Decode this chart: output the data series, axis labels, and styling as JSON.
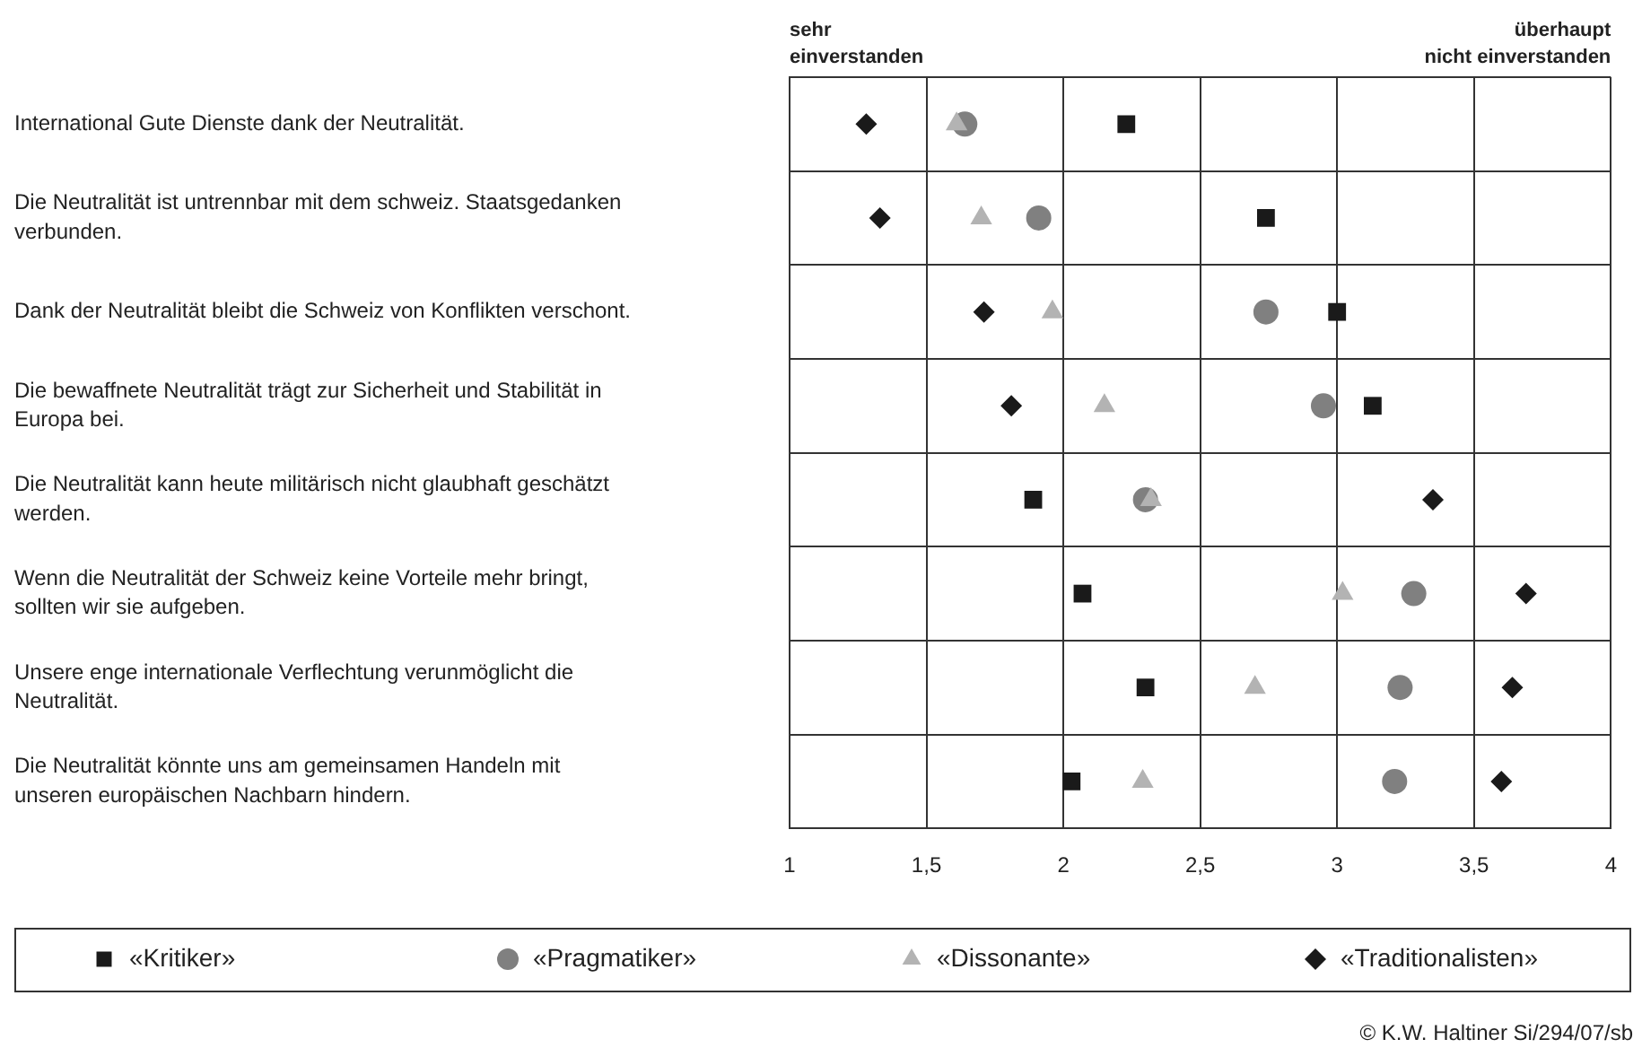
{
  "chart_data": {
    "type": "scatter",
    "categories": [
      "International Gute Dienste dank der Neutralität.",
      "Die Neutralität ist untrennbar mit dem schweiz. Staatsgedanken verbunden.",
      "Dank der Neutralität bleibt die Schweiz von Konflikten verschont.",
      "Die bewaffnete Neutralität trägt zur Sicherheit und Stabilität in Europa bei.",
      "Die Neutralität kann heute militärisch nicht glaubhaft geschätzt werden.",
      "Wenn die Neutralität der Schweiz keine Vorteile mehr bringt, sollten wir sie aufgeben.",
      "Unsere enge internationale Verflechtung verunmöglicht die Neutralität.",
      "Die Neutralität könnte uns am gemeinsamen Handeln mit unseren europäischen Nachbarn hindern."
    ],
    "orientation": "horizontal",
    "xlim": [
      1,
      4
    ],
    "xticks": [
      1,
      {
        "value": 1.5,
        "label": "1,5"
      },
      2,
      {
        "value": 2.5,
        "label": "2,5"
      },
      3,
      {
        "value": 3.5,
        "label": "3,5"
      },
      4
    ],
    "grid": true,
    "legend": "bottom",
    "series": [
      {
        "name": "«Kritiker»",
        "color": "#1a1a1a",
        "marker": "square",
        "values": [
          2.23,
          2.74,
          3.0,
          3.13,
          1.89,
          2.07,
          2.3,
          2.03
        ]
      },
      {
        "name": "«Pragmatiker»",
        "color": "#808080",
        "marker": "circle",
        "values": [
          1.64,
          1.91,
          2.74,
          2.95,
          2.3,
          3.28,
          3.23,
          3.21
        ]
      },
      {
        "name": "«Dissonante»",
        "color": "#b3b3b3",
        "marker": "triangle",
        "values": [
          1.61,
          1.7,
          1.96,
          2.15,
          2.32,
          3.02,
          2.7,
          2.29
        ]
      },
      {
        "name": "«Traditionalisten»",
        "color": "#1a1a1a",
        "marker": "diamond",
        "values": [
          1.28,
          1.33,
          1.71,
          1.81,
          3.35,
          3.69,
          3.64,
          3.6
        ]
      }
    ],
    "annotations": [
      "sehr\neinverstanden",
      "überhaupt\nnicht einverstanden",
      "© K.W. Haltiner Si/294/07/sb"
    ]
  }
}
